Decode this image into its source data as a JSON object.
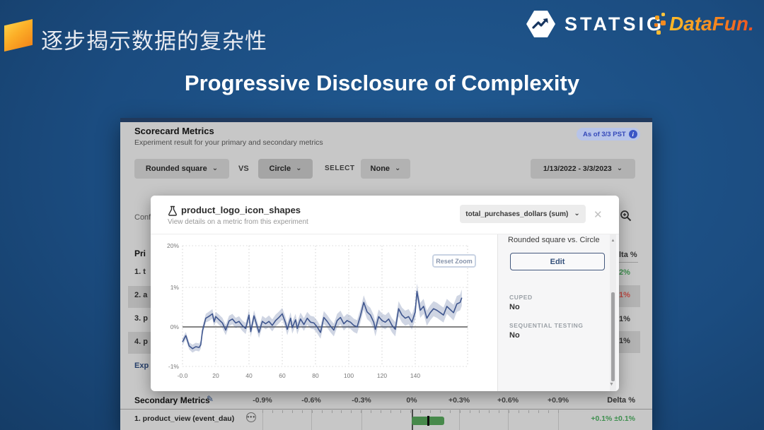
{
  "slide": {
    "title_zh": "逐步揭示数据的复杂性",
    "title_en": "Progressive Disclosure of Complexity",
    "statsig_wordmark": "STATSIG",
    "datafun_wordmark": "DataFun."
  },
  "icons": {
    "chevron_down": "⌄",
    "close": "✕",
    "info": "i",
    "pencil": "✎",
    "ellipsis": "●●●",
    "scroll_up": "▲",
    "scroll_down": "▼"
  },
  "colors": {
    "accent_blue": "#3a55c6",
    "chart_line": "#3f568e",
    "positive_green": "#3f8f4f",
    "negative_red": "#bf4a44",
    "bar_green": "#47894b"
  },
  "scorecard": {
    "title": "Scorecard Metrics",
    "subtitle": "Experiment result for your primary and secondary metrics",
    "as_of_badge": "As of 3/3 PST",
    "controls": {
      "group_a": "Rounded square",
      "vs_label": "VS",
      "group_b": "Circle",
      "select_label": "SELECT",
      "select_value": "None",
      "date_range": "1/13/2022 - 3/3/2023"
    },
    "left_clipped": {
      "conf": "Conf",
      "primary_header": "Pri",
      "rows": [
        "1. t",
        "2. a",
        "3. p",
        "4. p"
      ],
      "export": "Exp"
    },
    "right_clipped": {
      "delta_header": "lta %",
      "values": [
        {
          "text": "2%",
          "color": "#3f8f4f",
          "highlight": false
        },
        {
          "text": "1%",
          "color": "#bf4a44",
          "highlight": true
        },
        {
          "text": "1%",
          "color": "#333333",
          "highlight": false
        },
        {
          "text": "1%",
          "color": "#333333",
          "highlight": true
        }
      ]
    },
    "secondary": {
      "title": "Secondary Metrics",
      "axis_labels": [
        "-0.9%",
        "-0.6%",
        "-0.3%",
        "0%",
        "+0.3%",
        "+0.6%",
        "+0.9%"
      ],
      "delta_header": "Delta %",
      "row": {
        "name": "1. product_view (event_dau)",
        "delta": "+0.1% ±0.1%",
        "ci_low_pct": 0.0,
        "ci_high_pct": 0.2,
        "mean_pct": 0.1
      }
    }
  },
  "modal": {
    "title": "product_logo_icon_shapes",
    "subtitle": "View details on a metric from this experiment",
    "metric_dropdown": "total_purchases_dollars (sum)",
    "reset_zoom": "Reset Zoom",
    "panel": {
      "comparison": "Rounded square vs. Circle",
      "edit_button": "Edit",
      "cuped_label": "CUPED",
      "cuped_value": "No",
      "seq_label": "SEQUENTIAL TESTING",
      "seq_value": "No"
    }
  },
  "chart_data": {
    "type": "line",
    "title": "",
    "xlabel": "",
    "ylabel": "",
    "legend": "none",
    "grid": "dotted",
    "y_tick_labels": [
      "20%",
      "1%",
      "0%",
      "-1%"
    ],
    "y_tick_values_pct": [
      20,
      1,
      0,
      -1
    ],
    "x_tick_labels": [
      "-0.0",
      "20",
      "40",
      "60",
      "80",
      "100",
      "120",
      "140"
    ],
    "x_tick_values": [
      0,
      20,
      40,
      60,
      80,
      100,
      120,
      140
    ],
    "x_range": [
      0,
      168
    ],
    "y_linear_range_pct": [
      -1,
      1
    ],
    "series": [
      {
        "name": "delta % with confidence band",
        "points_x_y_ci": [
          [
            0,
            -0.38,
            0.09
          ],
          [
            2,
            -0.22,
            0.09
          ],
          [
            4,
            -0.48,
            0.09
          ],
          [
            6,
            -0.55,
            0.1
          ],
          [
            8,
            -0.5,
            0.1
          ],
          [
            10,
            -0.52,
            0.1
          ],
          [
            11,
            -0.45,
            0.1
          ],
          [
            12,
            -0.1,
            0.11
          ],
          [
            14,
            0.22,
            0.11
          ],
          [
            16,
            0.27,
            0.12
          ],
          [
            18,
            0.33,
            0.12
          ],
          [
            19,
            0.13,
            0.12
          ],
          [
            20,
            0.26,
            0.12
          ],
          [
            22,
            0.18,
            0.13
          ],
          [
            24,
            0.1,
            0.13
          ],
          [
            26,
            -0.08,
            0.13
          ],
          [
            28,
            0.15,
            0.13
          ],
          [
            30,
            0.2,
            0.13
          ],
          [
            32,
            0.1,
            0.13
          ],
          [
            34,
            0.14,
            0.13
          ],
          [
            36,
            0.03,
            0.13
          ],
          [
            38,
            -0.04,
            0.14
          ],
          [
            40,
            0.3,
            0.14
          ],
          [
            41,
            -0.12,
            0.14
          ],
          [
            43,
            0.28,
            0.14
          ],
          [
            45,
            0,
            0.14
          ],
          [
            46,
            -0.14,
            0.14
          ],
          [
            48,
            0.14,
            0.14
          ],
          [
            50,
            0.08,
            0.14
          ],
          [
            52,
            0.14,
            0.15
          ],
          [
            54,
            0.04,
            0.15
          ],
          [
            56,
            0.16,
            0.15
          ],
          [
            58,
            0.24,
            0.15
          ],
          [
            60,
            0.33,
            0.15
          ],
          [
            62,
            0.1,
            0.15
          ],
          [
            63,
            -0.06,
            0.15
          ],
          [
            65,
            0.22,
            0.15
          ],
          [
            66,
            -0.02,
            0.15
          ],
          [
            68,
            0.18,
            0.15
          ],
          [
            69,
            -0.04,
            0.15
          ],
          [
            71,
            0.2,
            0.16
          ],
          [
            73,
            0.06,
            0.16
          ],
          [
            75,
            0.22,
            0.16
          ],
          [
            77,
            0.12,
            0.16
          ],
          [
            79,
            0.1,
            0.16
          ],
          [
            81,
            0,
            0.16
          ],
          [
            83,
            -0.14,
            0.16
          ],
          [
            85,
            0.24,
            0.16
          ],
          [
            87,
            0.14,
            0.16
          ],
          [
            89,
            0.02,
            0.16
          ],
          [
            91,
            -0.08,
            0.16
          ],
          [
            93,
            0.16,
            0.17
          ],
          [
            95,
            0.24,
            0.17
          ],
          [
            97,
            0.08,
            0.17
          ],
          [
            99,
            0.16,
            0.17
          ],
          [
            101,
            0.12,
            0.17
          ],
          [
            103,
            0.04,
            0.17
          ],
          [
            105,
            0,
            0.17
          ],
          [
            107,
            0.28,
            0.17
          ],
          [
            109,
            0.62,
            0.18
          ],
          [
            111,
            0.38,
            0.18
          ],
          [
            113,
            0.3,
            0.18
          ],
          [
            115,
            0.12,
            0.18
          ],
          [
            116,
            -0.06,
            0.18
          ],
          [
            118,
            0.26,
            0.18
          ],
          [
            120,
            0.16,
            0.18
          ],
          [
            122,
            0.12,
            0.18
          ],
          [
            124,
            0.2,
            0.18
          ],
          [
            126,
            0.04,
            0.18
          ],
          [
            128,
            -0.06,
            0.18
          ],
          [
            130,
            0.46,
            0.19
          ],
          [
            132,
            0.3,
            0.19
          ],
          [
            134,
            0.22,
            0.19
          ],
          [
            136,
            0.26,
            0.19
          ],
          [
            138,
            0.12,
            0.19
          ],
          [
            140,
            0.38,
            0.19
          ],
          [
            141,
            0.9,
            0.2
          ],
          [
            143,
            0.42,
            0.19
          ],
          [
            145,
            0.52,
            0.19
          ],
          [
            147,
            0.22,
            0.19
          ],
          [
            149,
            0.36,
            0.19
          ],
          [
            151,
            0.46,
            0.19
          ],
          [
            153,
            0.42,
            0.19
          ],
          [
            155,
            0.36,
            0.19
          ],
          [
            157,
            0.3,
            0.19
          ],
          [
            159,
            0.52,
            0.19
          ],
          [
            161,
            0.44,
            0.19
          ],
          [
            163,
            0.36,
            0.2
          ],
          [
            165,
            0.58,
            0.2
          ],
          [
            167,
            0.62,
            0.2
          ],
          [
            168,
            0.74,
            0.21
          ]
        ]
      }
    ]
  }
}
